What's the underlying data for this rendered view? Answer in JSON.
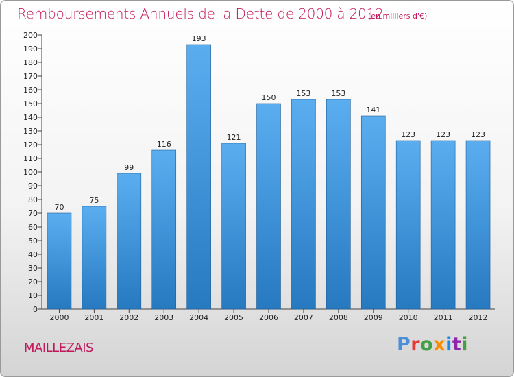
{
  "header": {
    "title": "Remboursements Annuels de la Dette de 2000 à 2012",
    "subtitle": "(en milliers d'€)"
  },
  "footer": {
    "commune": "MAILLEZAIS",
    "logo": {
      "text": "Proxiti",
      "letters": [
        {
          "char": "P",
          "color": "#4a90d9"
        },
        {
          "char": "r",
          "color": "#e53935"
        },
        {
          "char": "o",
          "color": "#43a047"
        },
        {
          "char": "x",
          "color": "#fb8c00"
        },
        {
          "char": "i",
          "color": "#1e88e5"
        },
        {
          "char": "t",
          "color": "#8e24aa"
        },
        {
          "char": "i",
          "color": "#43a047"
        }
      ]
    }
  },
  "colors": {
    "bar_top": "#5aaef0",
    "bar_bottom": "#2779c0",
    "accent": "#c2185b"
  },
  "chart_data": {
    "type": "bar",
    "title": "Remboursements Annuels de la Dette de 2000 à 2012",
    "subtitle": "(en milliers d'€)",
    "categories": [
      "2000",
      "2001",
      "2002",
      "2003",
      "2004",
      "2005",
      "2006",
      "2007",
      "2008",
      "2009",
      "2010",
      "2011",
      "2012"
    ],
    "values": [
      70,
      75,
      99,
      116,
      193,
      121,
      150,
      153,
      153,
      141,
      123,
      123,
      123
    ],
    "ylim": [
      0,
      200
    ],
    "ytick_step": 10,
    "grid": false,
    "legend": "none"
  }
}
